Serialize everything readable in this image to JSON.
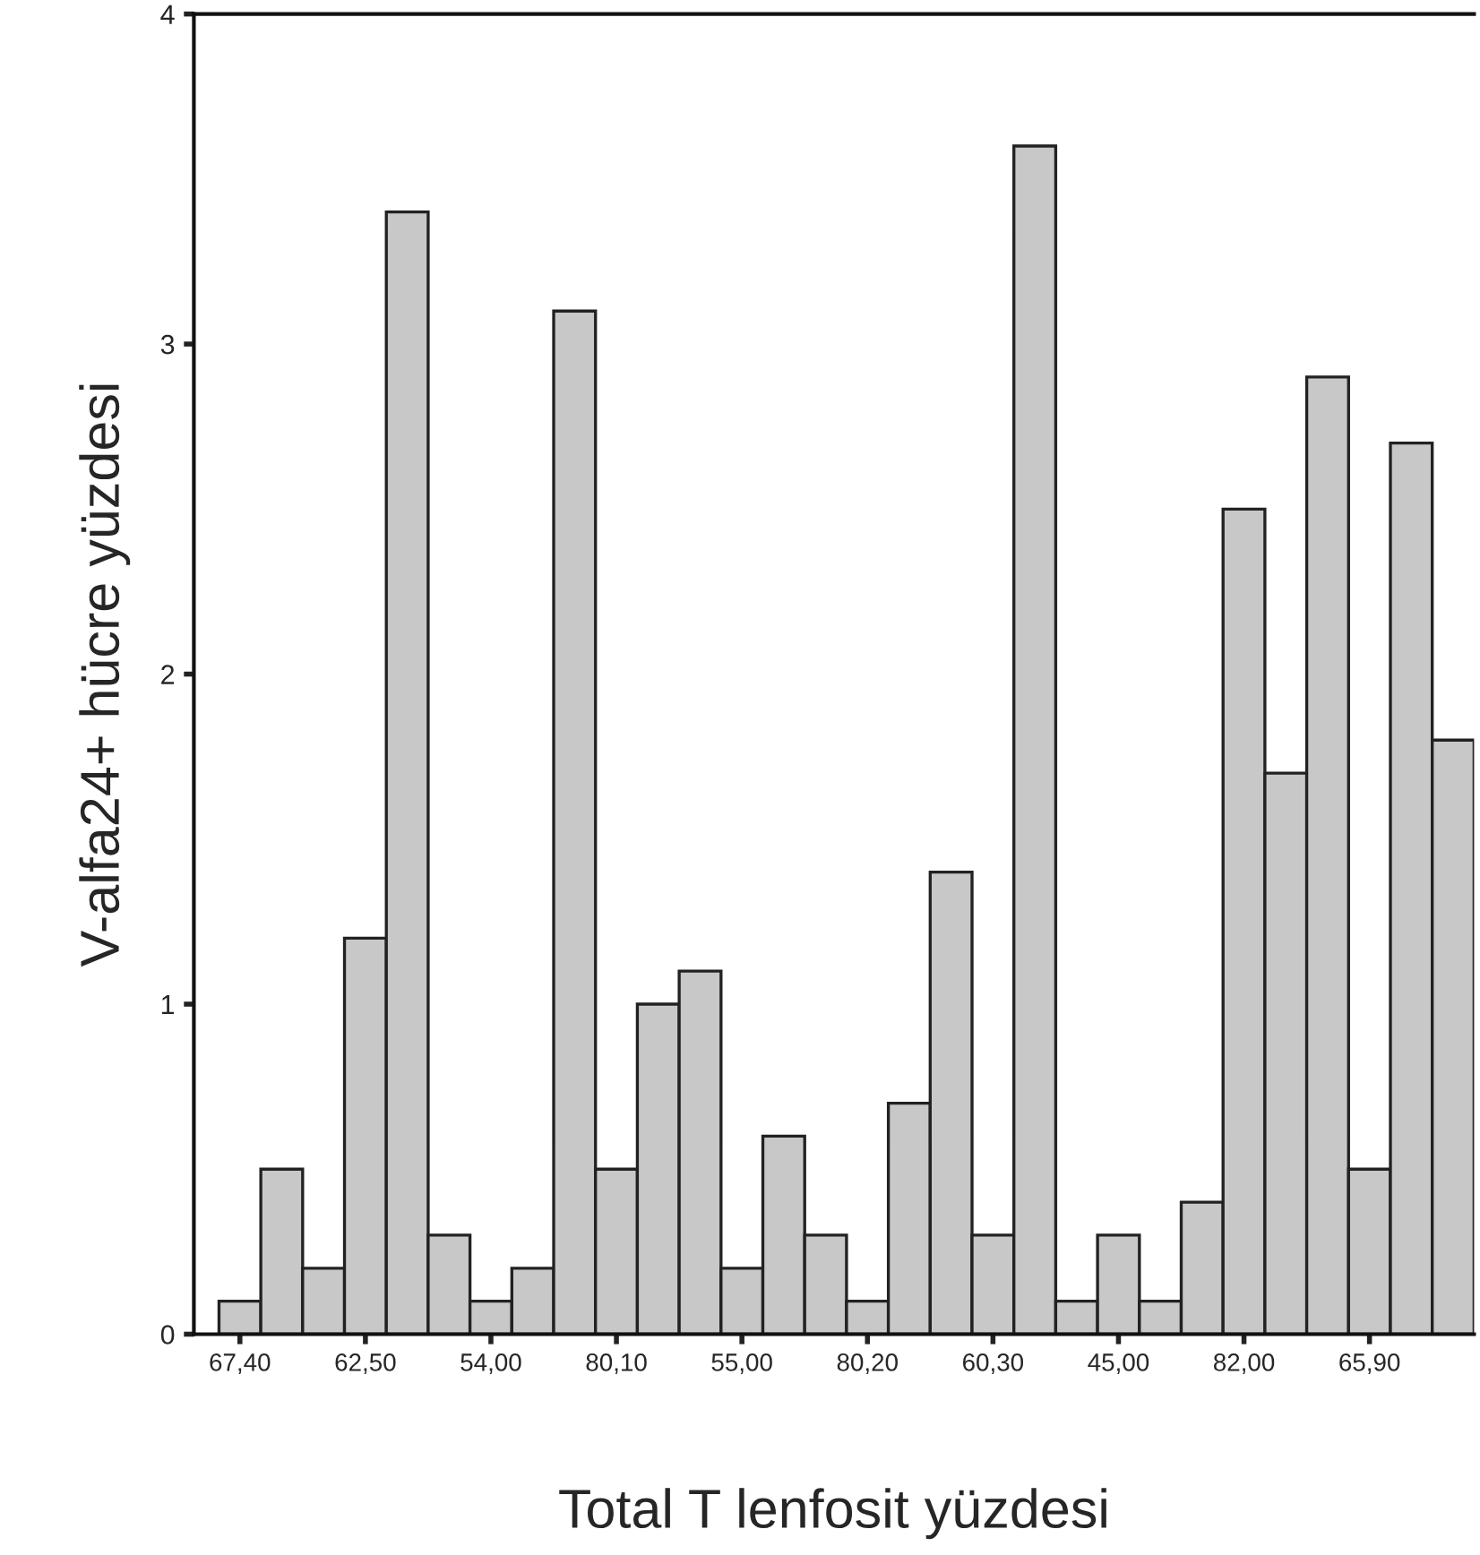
{
  "chart_data": {
    "type": "bar",
    "xlabel": "Total T lenfosit yüzdesi",
    "ylabel": "V-alfa24+ hücre yüzdesi",
    "categories": [
      "67,40",
      null,
      null,
      "62,50",
      null,
      null,
      "54,00",
      null,
      null,
      "80,10",
      null,
      null,
      "55,00",
      null,
      null,
      "80,20",
      null,
      null,
      "60,30",
      null,
      null,
      "45,00",
      null,
      null,
      "82,00",
      null,
      null,
      "65,90",
      null,
      null
    ],
    "values": [
      0.1,
      0.5,
      0.2,
      1.2,
      3.4,
      0.3,
      0.1,
      0.2,
      3.1,
      0.5,
      1.0,
      1.1,
      0.2,
      0.6,
      0.3,
      0.1,
      0.7,
      1.4,
      0.3,
      3.6,
      0.1,
      0.3,
      0.1,
      0.4,
      2.5,
      1.7,
      2.9,
      0.5,
      2.7,
      1.8
    ],
    "color": "#c8c8c8",
    "ylim": [
      0,
      4
    ],
    "yticks": [
      0,
      1,
      2,
      3,
      4
    ],
    "grid": false
  }
}
